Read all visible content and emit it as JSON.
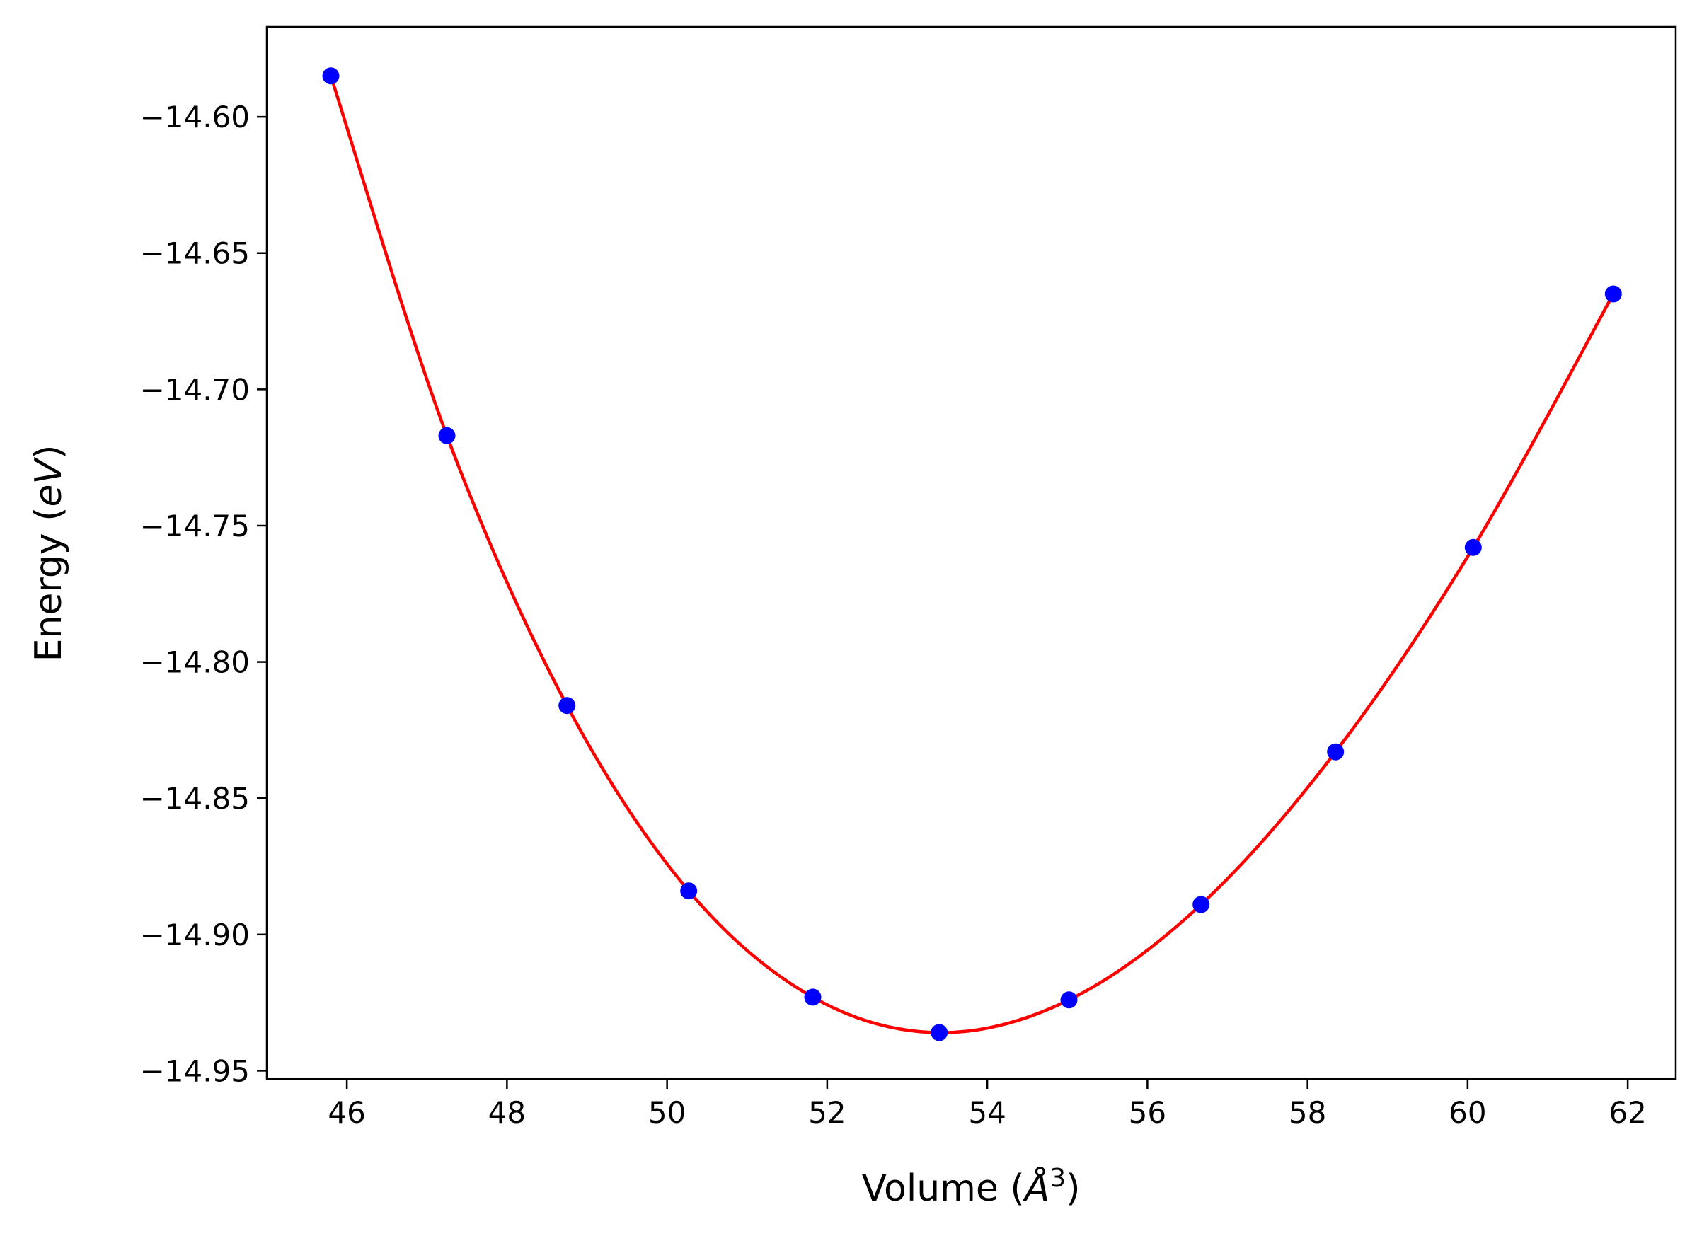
{
  "chart_data": {
    "type": "scatter",
    "xlabel": "Volume (Å³)",
    "ylabel": "Energy (eV)",
    "xlim": [
      45,
      62.6
    ],
    "ylim": [
      -14.953,
      -14.567
    ],
    "xticks": [
      46,
      48,
      50,
      52,
      54,
      56,
      58,
      60,
      62
    ],
    "yticks": [
      -14.6,
      -14.65,
      -14.7,
      -14.75,
      -14.8,
      -14.85,
      -14.9,
      -14.95
    ],
    "xtick_labels": [
      "46",
      "48",
      "50",
      "52",
      "54",
      "56",
      "58",
      "60",
      "62"
    ],
    "ytick_labels": [
      "−14.60",
      "−14.65",
      "−14.70",
      "−14.75",
      "−14.80",
      "−14.85",
      "−14.90",
      "−14.95"
    ],
    "grid": false,
    "series": [
      {
        "kind": "points",
        "color": "#0000ff",
        "x": [
          45.8,
          47.25,
          48.75,
          50.27,
          51.82,
          53.4,
          55.02,
          56.67,
          58.35,
          60.07,
          61.82
        ],
        "y": [
          -14.585,
          -14.717,
          -14.816,
          -14.884,
          -14.923,
          -14.936,
          -14.924,
          -14.889,
          -14.833,
          -14.758,
          -14.665
        ]
      },
      {
        "kind": "fit-line",
        "color": "#ff0000",
        "x": [
          45.8,
          47.25,
          48.75,
          50.27,
          51.82,
          53.4,
          55.02,
          56.67,
          58.35,
          60.07,
          61.82
        ],
        "y": [
          -14.585,
          -14.717,
          -14.816,
          -14.884,
          -14.923,
          -14.936,
          -14.924,
          -14.889,
          -14.833,
          -14.758,
          -14.665
        ]
      }
    ]
  }
}
